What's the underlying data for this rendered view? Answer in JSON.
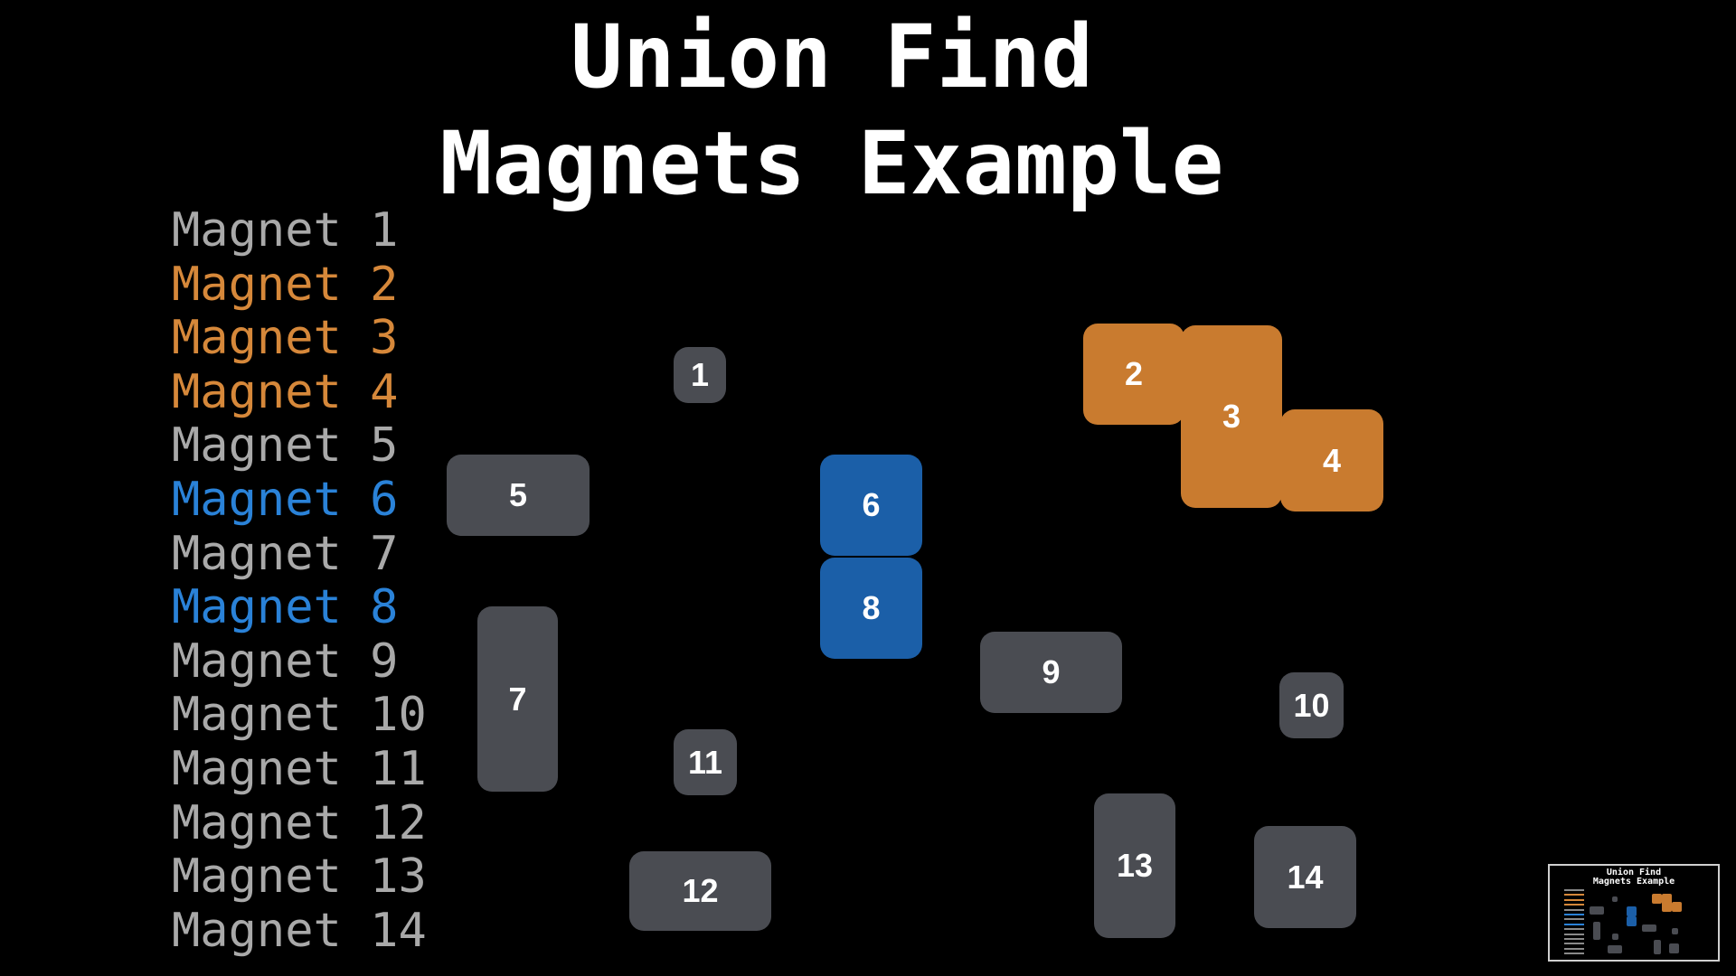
{
  "title": {
    "line1": "Union Find",
    "line2": "Magnets Example"
  },
  "colors": {
    "background": "#000000",
    "default_text": "#a9a9a9",
    "default_magnet": "#4a4c52",
    "group_orange": "#d6883a",
    "group_orange_box": "#c97b2f",
    "group_blue": "#2a82d8",
    "group_blue_box": "#1b5fa8"
  },
  "legend": [
    {
      "label": "Magnet 1",
      "group": "none"
    },
    {
      "label": "Magnet 2",
      "group": "orange"
    },
    {
      "label": "Magnet 3",
      "group": "orange"
    },
    {
      "label": "Magnet 4",
      "group": "orange"
    },
    {
      "label": "Magnet 5",
      "group": "none"
    },
    {
      "label": "Magnet 6",
      "group": "blue"
    },
    {
      "label": "Magnet 7",
      "group": "none"
    },
    {
      "label": "Magnet 8",
      "group": "blue"
    },
    {
      "label": "Magnet 9",
      "group": "none"
    },
    {
      "label": "Magnet 10",
      "group": "none"
    },
    {
      "label": "Magnet 11",
      "group": "none"
    },
    {
      "label": "Magnet 12",
      "group": "none"
    },
    {
      "label": "Magnet 13",
      "group": "none"
    },
    {
      "label": "Magnet 14",
      "group": "none"
    }
  ],
  "magnets": [
    {
      "label": "1",
      "group": "none"
    },
    {
      "label": "2",
      "group": "orange"
    },
    {
      "label": "3",
      "group": "orange"
    },
    {
      "label": "4",
      "group": "orange"
    },
    {
      "label": "5",
      "group": "none"
    },
    {
      "label": "6",
      "group": "blue"
    },
    {
      "label": "7",
      "group": "none"
    },
    {
      "label": "8",
      "group": "blue"
    },
    {
      "label": "9",
      "group": "none"
    },
    {
      "label": "10",
      "group": "none"
    },
    {
      "label": "11",
      "group": "none"
    },
    {
      "label": "12",
      "group": "none"
    },
    {
      "label": "13",
      "group": "none"
    },
    {
      "label": "14",
      "group": "none"
    }
  ],
  "thumbnail": {
    "line1": "Union Find",
    "line2": "Magnets Example"
  }
}
